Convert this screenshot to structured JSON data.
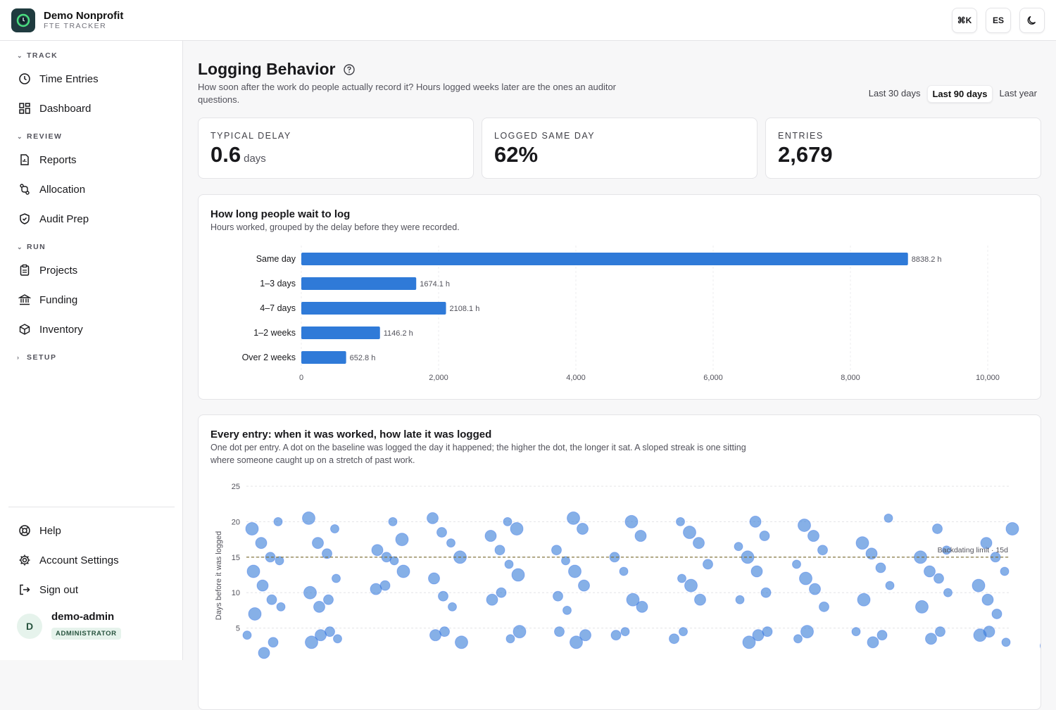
{
  "app": {
    "name": "Demo Nonprofit",
    "subtitle": "FTE TRACKER"
  },
  "topbar": {
    "command_label": "⌘K",
    "language_label": "ES"
  },
  "sidebar": {
    "sections": [
      {
        "label": "TRACK",
        "items": [
          "Time Entries",
          "Dashboard"
        ]
      },
      {
        "label": "REVIEW",
        "items": [
          "Reports",
          "Allocation",
          "Audit Prep"
        ]
      },
      {
        "label": "RUN",
        "items": [
          "Projects",
          "Funding",
          "Inventory"
        ]
      },
      {
        "label": "SETUP",
        "items": []
      }
    ],
    "bottom_items": [
      "Help",
      "Account Settings",
      "Sign out"
    ],
    "user": {
      "initial": "D",
      "name": "demo-admin",
      "role": "ADMINISTRATOR"
    }
  },
  "page": {
    "title": "Logging Behavior",
    "description": "How soon after the work do people actually record it? Hours logged weeks later are the ones an auditor questions.",
    "ranges": [
      "Last 30 days",
      "Last 90 days",
      "Last year"
    ],
    "active_range": "Last 90 days"
  },
  "stats": [
    {
      "label": "TYPICAL DELAY",
      "value": "0.6",
      "unit": "days"
    },
    {
      "label": "LOGGED SAME DAY",
      "value": "62%",
      "unit": ""
    },
    {
      "label": "ENTRIES",
      "value": "2,679",
      "unit": ""
    }
  ],
  "delay_chart": {
    "title": "How long people wait to log",
    "subtitle": "Hours worked, grouped by the delay before they were recorded."
  },
  "scatter_chart": {
    "title": "Every entry: when it was worked, how late it was logged",
    "subtitle": "One dot per entry. A dot on the baseline was logged the day it happened; the higher the dot, the longer it sat. A sloped streak is one sitting where someone caught up on a stretch of past work.",
    "limit_label": "Backdating limit · 15d"
  },
  "colors": {
    "bar": "#2f7ad8",
    "dot": "#3b7fd8",
    "limit_line": "#7a6a2e"
  },
  "chart_data": [
    {
      "type": "bar",
      "orientation": "horizontal",
      "categories": [
        "Same day",
        "1–3 days",
        "4–7 days",
        "1–2 weeks",
        "Over 2 weeks"
      ],
      "values": [
        8838.2,
        1674.1,
        2108.1,
        1146.2,
        652.8
      ],
      "value_labels": [
        "8838.2 h",
        "1674.1 h",
        "2108.1 h",
        "1146.2 h",
        "652.8 h"
      ],
      "xlim": [
        0,
        10000
      ],
      "xticks": [
        0,
        2000,
        4000,
        6000,
        8000,
        10000
      ],
      "xtick_labels": [
        "0",
        "2,000",
        "4,000",
        "6,000",
        "8,000",
        "10,000"
      ],
      "grid": true
    },
    {
      "type": "scatter",
      "ylabel": "Days before it was logged",
      "ylim": [
        0,
        25
      ],
      "yticks": [
        5,
        10,
        15,
        20,
        25
      ],
      "reference_line": {
        "y": 15,
        "label": "Backdating limit · 15d"
      },
      "series": [
        {
          "points": [
            [
              0,
              4
            ],
            [
              0,
              3
            ],
            [
              0,
              1.5
            ],
            [
              0,
              7
            ],
            [
              0,
              8
            ],
            [
              0,
              9
            ],
            [
              0,
              11
            ],
            [
              0,
              13
            ],
            [
              0,
              14.5
            ],
            [
              0,
              15
            ],
            [
              0,
              17
            ],
            [
              0,
              19
            ],
            [
              0,
              20
            ],
            [
              1,
              4.5
            ],
            [
              1,
              4
            ],
            [
              1,
              3
            ],
            [
              1,
              3.5
            ],
            [
              1,
              9
            ],
            [
              1,
              8
            ],
            [
              1,
              10
            ],
            [
              1,
              12
            ],
            [
              1,
              15.5
            ],
            [
              1,
              17
            ],
            [
              1,
              20.5
            ],
            [
              1,
              19
            ],
            [
              2,
              15
            ],
            [
              2,
              16
            ],
            [
              2,
              13
            ],
            [
              2,
              14.5
            ],
            [
              2,
              11
            ],
            [
              2,
              10.5
            ],
            [
              2,
              17.5
            ],
            [
              2,
              20
            ],
            [
              3,
              4.5
            ],
            [
              3,
              4
            ],
            [
              3,
              3
            ],
            [
              3,
              8
            ],
            [
              3,
              9.5
            ],
            [
              3,
              12
            ],
            [
              3,
              15
            ],
            [
              3,
              17
            ],
            [
              3,
              18.5
            ],
            [
              3,
              20.5
            ],
            [
              4,
              4.5
            ],
            [
              4,
              3.5
            ],
            [
              4,
              10
            ],
            [
              4,
              9
            ],
            [
              4,
              12.5
            ],
            [
              4,
              14
            ],
            [
              4,
              16
            ],
            [
              4,
              18
            ],
            [
              4,
              19
            ],
            [
              4,
              20
            ],
            [
              5,
              4.5
            ],
            [
              5,
              4
            ],
            [
              5,
              3
            ],
            [
              5,
              7.5
            ],
            [
              5,
              9.5
            ],
            [
              5,
              11
            ],
            [
              5,
              13
            ],
            [
              5,
              14.5
            ],
            [
              5,
              16
            ],
            [
              5,
              19
            ],
            [
              5,
              20.5
            ],
            [
              6,
              4.5
            ],
            [
              6,
              4
            ],
            [
              6,
              8
            ],
            [
              6,
              9
            ],
            [
              6,
              13
            ],
            [
              6,
              15
            ],
            [
              6,
              18
            ],
            [
              6,
              20
            ],
            [
              7,
              4.5
            ],
            [
              7,
              3.5
            ],
            [
              7,
              9
            ],
            [
              7,
              11
            ],
            [
              7,
              12
            ],
            [
              7,
              14
            ],
            [
              7,
              17
            ],
            [
              7,
              18.5
            ],
            [
              7,
              20
            ],
            [
              8,
              4.5
            ],
            [
              8,
              4
            ],
            [
              8,
              3
            ],
            [
              8,
              9
            ],
            [
              8,
              10
            ],
            [
              8,
              13
            ],
            [
              8,
              15
            ],
            [
              8,
              16.5
            ],
            [
              8,
              18
            ],
            [
              8,
              20
            ],
            [
              9,
              4.5
            ],
            [
              9,
              3.5
            ],
            [
              9,
              8
            ],
            [
              9,
              10.5
            ],
            [
              9,
              12
            ],
            [
              9,
              14
            ],
            [
              9,
              16
            ],
            [
              9,
              18
            ],
            [
              9,
              19.5
            ],
            [
              10,
              4.5
            ],
            [
              10,
              4
            ],
            [
              10,
              3
            ],
            [
              10,
              9
            ],
            [
              10,
              11
            ],
            [
              10,
              13.5
            ],
            [
              10,
              15.5
            ],
            [
              10,
              17
            ],
            [
              10,
              20.5
            ],
            [
              11,
              4.5
            ],
            [
              11,
              3.5
            ],
            [
              11,
              8
            ],
            [
              11,
              10
            ],
            [
              11,
              12
            ],
            [
              11,
              13
            ],
            [
              11,
              15
            ],
            [
              11,
              16
            ],
            [
              11,
              19
            ],
            [
              12,
              4.5
            ],
            [
              12,
              4
            ],
            [
              12,
              3
            ],
            [
              12,
              7
            ],
            [
              12,
              9
            ],
            [
              12,
              11
            ],
            [
              12,
              13
            ],
            [
              12,
              15
            ],
            [
              12,
              17
            ],
            [
              12,
              19
            ],
            [
              13,
              4.5
            ],
            [
              13,
              3.5
            ],
            [
              13,
              2.5
            ],
            [
              13,
              9
            ],
            [
              13,
              10
            ],
            [
              13,
              11
            ]
          ]
        }
      ]
    }
  ]
}
